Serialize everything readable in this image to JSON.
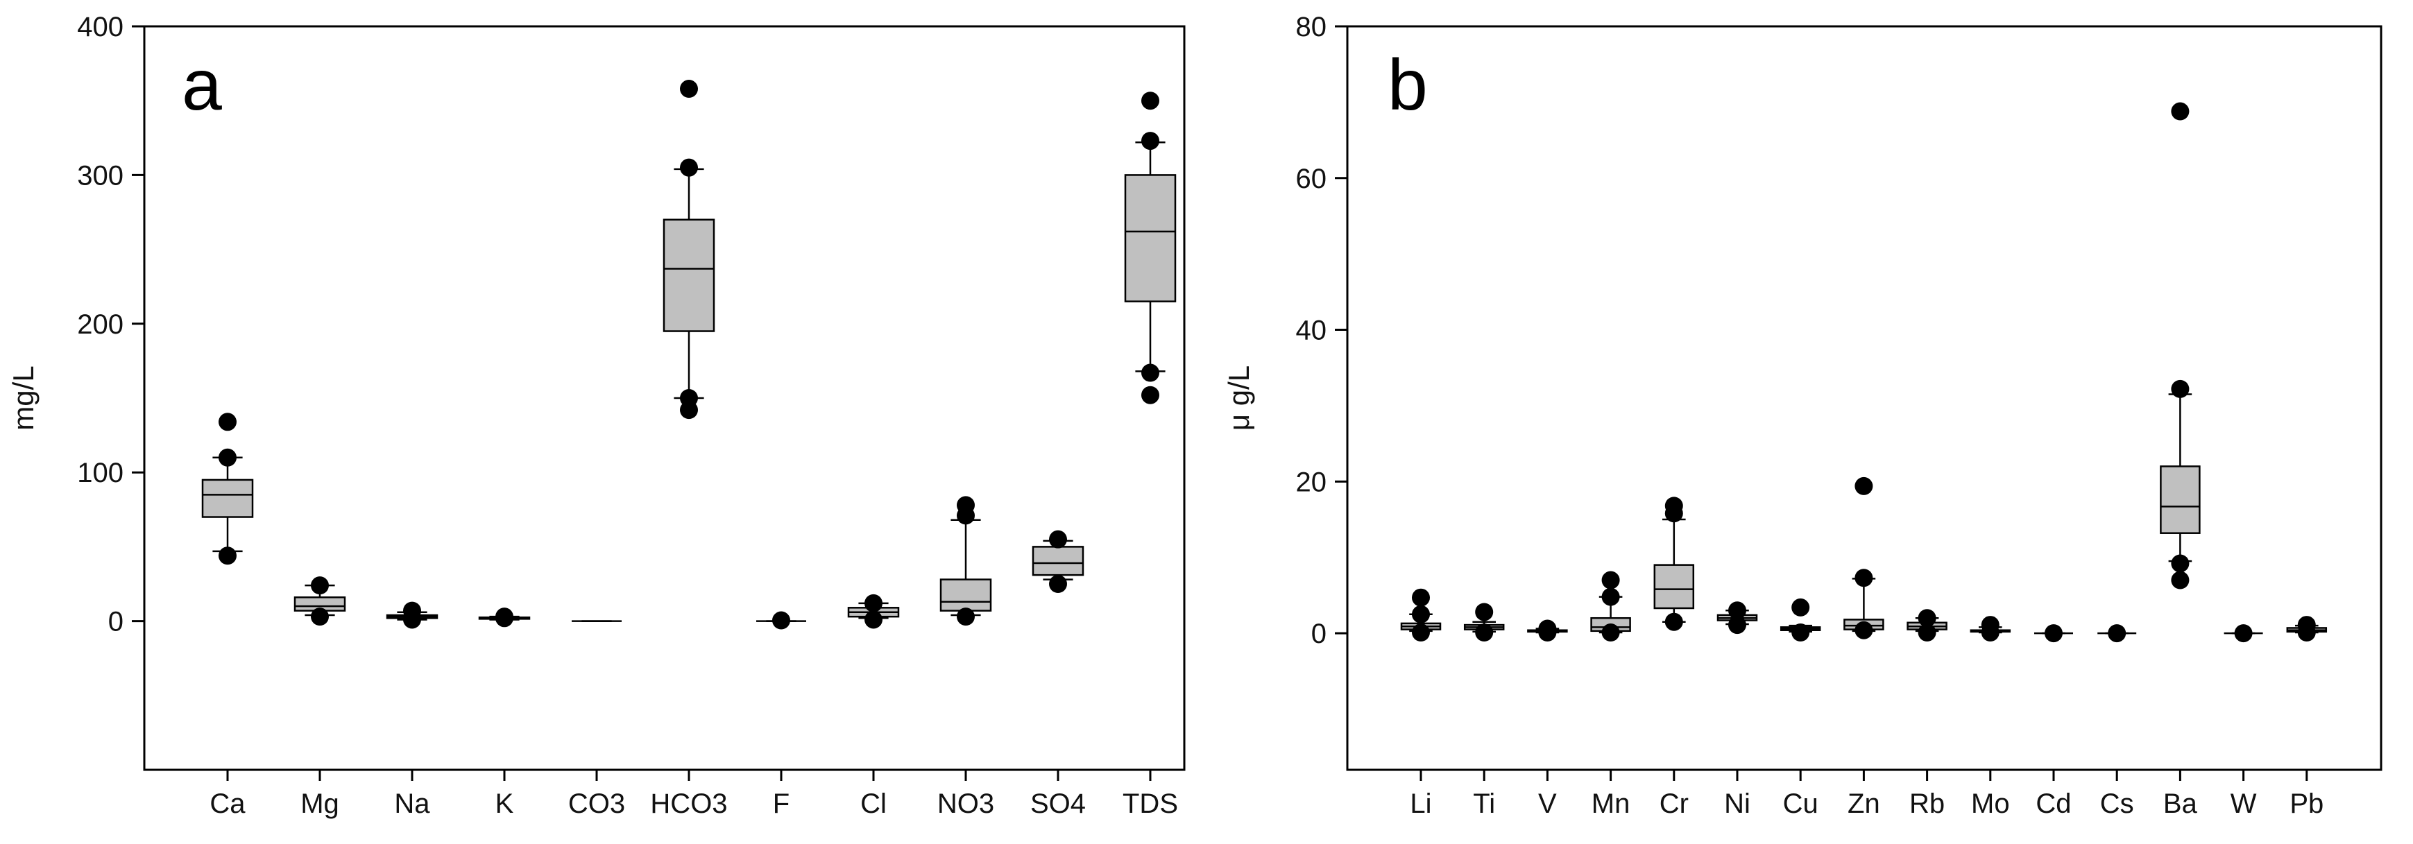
{
  "chart_data": [
    {
      "type": "box",
      "panel_label": "a",
      "ylabel": "mg/L",
      "ylim": [
        -100,
        400
      ],
      "yticks": [
        0,
        100,
        200,
        300,
        400
      ],
      "categories": [
        "Ca",
        "Mg",
        "Na",
        "K",
        "CO3",
        "HCO3",
        "F",
        "Cl",
        "NO3",
        "SO4",
        "TDS"
      ],
      "boxes": [
        {
          "category": "Ca",
          "whisker_low": 47,
          "q1": 70,
          "median": 85,
          "q3": 95,
          "whisker_high": 110,
          "outliers": [
            44,
            110,
            134
          ]
        },
        {
          "category": "Mg",
          "whisker_low": 4,
          "q1": 7,
          "median": 10,
          "q3": 16,
          "whisker_high": 24,
          "outliers": [
            3,
            24
          ]
        },
        {
          "category": "Na",
          "whisker_low": 1,
          "q1": 2,
          "median": 3,
          "q3": 4,
          "whisker_high": 6,
          "outliers": [
            1,
            7
          ]
        },
        {
          "category": "K",
          "whisker_low": 1,
          "q1": 1.5,
          "median": 2,
          "q3": 2.5,
          "whisker_high": 3,
          "outliers": [
            2,
            3
          ]
        },
        {
          "category": "CO3",
          "whisker_low": 0,
          "q1": 0,
          "median": 0,
          "q3": 0,
          "whisker_high": 0,
          "outliers": []
        },
        {
          "category": "HCO3",
          "whisker_low": 150,
          "q1": 195,
          "median": 237,
          "q3": 270,
          "whisker_high": 304,
          "outliers": [
            142,
            150,
            305,
            358
          ]
        },
        {
          "category": "F",
          "whisker_low": 0,
          "q1": 0,
          "median": 0,
          "q3": 0,
          "whisker_high": 0,
          "outliers": [
            0.5
          ]
        },
        {
          "category": "Cl",
          "whisker_low": 2,
          "q1": 3,
          "median": 6,
          "q3": 9,
          "whisker_high": 12,
          "outliers": [
            1,
            12
          ]
        },
        {
          "category": "NO3",
          "whisker_low": 4,
          "q1": 7,
          "median": 13,
          "q3": 28,
          "whisker_high": 68,
          "outliers": [
            3,
            71,
            78
          ]
        },
        {
          "category": "SO4",
          "whisker_low": 28,
          "q1": 31,
          "median": 39,
          "q3": 50,
          "whisker_high": 54,
          "outliers": [
            25,
            55
          ]
        },
        {
          "category": "TDS",
          "whisker_low": 168,
          "q1": 215,
          "median": 262,
          "q3": 300,
          "whisker_high": 322,
          "outliers": [
            152,
            167,
            323,
            350
          ]
        }
      ]
    },
    {
      "type": "box",
      "panel_label": "b",
      "ylabel": "μ g/L",
      "ylim": [
        -18,
        80
      ],
      "yticks": [
        0,
        20,
        40,
        60,
        80
      ],
      "categories": [
        "Li",
        "Ti",
        "V",
        "Mn",
        "Cr",
        "Ni",
        "Cu",
        "Zn",
        "Rb",
        "Mo",
        "Cd",
        "Cs",
        "Ba",
        "W",
        "Pb"
      ],
      "boxes": [
        {
          "category": "Li",
          "whisker_low": 0.3,
          "q1": 0.5,
          "median": 0.9,
          "q3": 1.3,
          "whisker_high": 2.5,
          "outliers": [
            0.1,
            2.5,
            4.7
          ]
        },
        {
          "category": "Ti",
          "whisker_low": 0.2,
          "q1": 0.5,
          "median": 0.8,
          "q3": 1.1,
          "whisker_high": 1.5,
          "outliers": [
            0.1,
            2.8
          ]
        },
        {
          "category": "V",
          "whisker_low": 0.1,
          "q1": 0.2,
          "median": 0.3,
          "q3": 0.4,
          "whisker_high": 0.6,
          "outliers": [
            0.1,
            0.6
          ]
        },
        {
          "category": "Mn",
          "whisker_low": 0.1,
          "q1": 0.3,
          "median": 0.8,
          "q3": 2.0,
          "whisker_high": 4.8,
          "outliers": [
            0.1,
            4.8,
            7.0
          ]
        },
        {
          "category": "Cr",
          "whisker_low": 1.5,
          "q1": 3.3,
          "median": 5.8,
          "q3": 9.0,
          "whisker_high": 15.0,
          "outliers": [
            1.5,
            15.8,
            16.8
          ]
        },
        {
          "category": "Ni",
          "whisker_low": 1.2,
          "q1": 1.7,
          "median": 2.0,
          "q3": 2.4,
          "whisker_high": 3.0,
          "outliers": [
            1.1,
            3.0
          ]
        },
        {
          "category": "Cu",
          "whisker_low": 0.2,
          "q1": 0.4,
          "median": 0.6,
          "q3": 0.8,
          "whisker_high": 1.0,
          "outliers": [
            0.1,
            3.4
          ]
        },
        {
          "category": "Zn",
          "whisker_low": 0.3,
          "q1": 0.5,
          "median": 1.0,
          "q3": 1.8,
          "whisker_high": 7.2,
          "outliers": [
            0.4,
            7.3,
            19.4
          ]
        },
        {
          "category": "Rb",
          "whisker_low": 0.3,
          "q1": 0.5,
          "median": 0.9,
          "q3": 1.4,
          "whisker_high": 2.0,
          "outliers": [
            0.1,
            2.0
          ]
        },
        {
          "category": "Mo",
          "whisker_low": 0.1,
          "q1": 0.2,
          "median": 0.3,
          "q3": 0.4,
          "whisker_high": 0.8,
          "outliers": [
            0.1,
            1.1
          ]
        },
        {
          "category": "Cd",
          "whisker_low": 0,
          "q1": 0,
          "median": 0,
          "q3": 0,
          "whisker_high": 0,
          "outliers": [
            0
          ]
        },
        {
          "category": "Cs",
          "whisker_low": 0,
          "q1": 0,
          "median": 0,
          "q3": 0,
          "whisker_high": 0,
          "outliers": [
            0
          ]
        },
        {
          "category": "Ba",
          "whisker_low": 9.5,
          "q1": 13.2,
          "median": 16.7,
          "q3": 22.0,
          "whisker_high": 31.5,
          "outliers": [
            7.0,
            9.2,
            32.2,
            68.8
          ]
        },
        {
          "category": "W",
          "whisker_low": 0,
          "q1": 0,
          "median": 0,
          "q3": 0,
          "whisker_high": 0,
          "outliers": [
            0
          ]
        },
        {
          "category": "Pb",
          "whisker_low": 0.1,
          "q1": 0.2,
          "median": 0.4,
          "q3": 0.7,
          "whisker_high": 1.0,
          "outliers": [
            0.1,
            1.1
          ]
        }
      ]
    }
  ]
}
